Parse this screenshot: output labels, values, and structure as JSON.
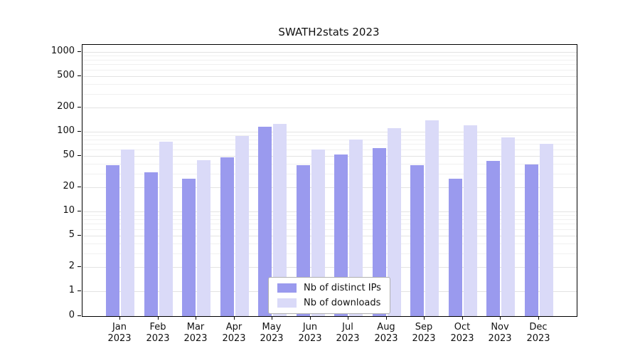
{
  "chart_data": {
    "type": "bar",
    "title": "SWATH2stats 2023",
    "categories": [
      "Jan",
      "Feb",
      "Mar",
      "Apr",
      "May",
      "Jun",
      "Jul",
      "Aug",
      "Sep",
      "Oct",
      "Nov",
      "Dec"
    ],
    "category_year": "2023",
    "series": [
      {
        "name": "Nb of distinct IPs",
        "color": "#9a9aee",
        "values": [
          38,
          31,
          26,
          48,
          115,
          38,
          52,
          62,
          38,
          26,
          43,
          39
        ]
      },
      {
        "name": "Nb of downloads",
        "color": "#dadaf8",
        "values": [
          60,
          75,
          44,
          88,
          125,
          60,
          80,
          110,
          140,
          120,
          85,
          70
        ]
      }
    ],
    "yticks": [
      0,
      1,
      2,
      5,
      10,
      20,
      50,
      100,
      200,
      500,
      1000
    ],
    "ylim": [
      0,
      1000
    ],
    "yscale": "log",
    "grid": "on",
    "legend_position": "lower center"
  }
}
